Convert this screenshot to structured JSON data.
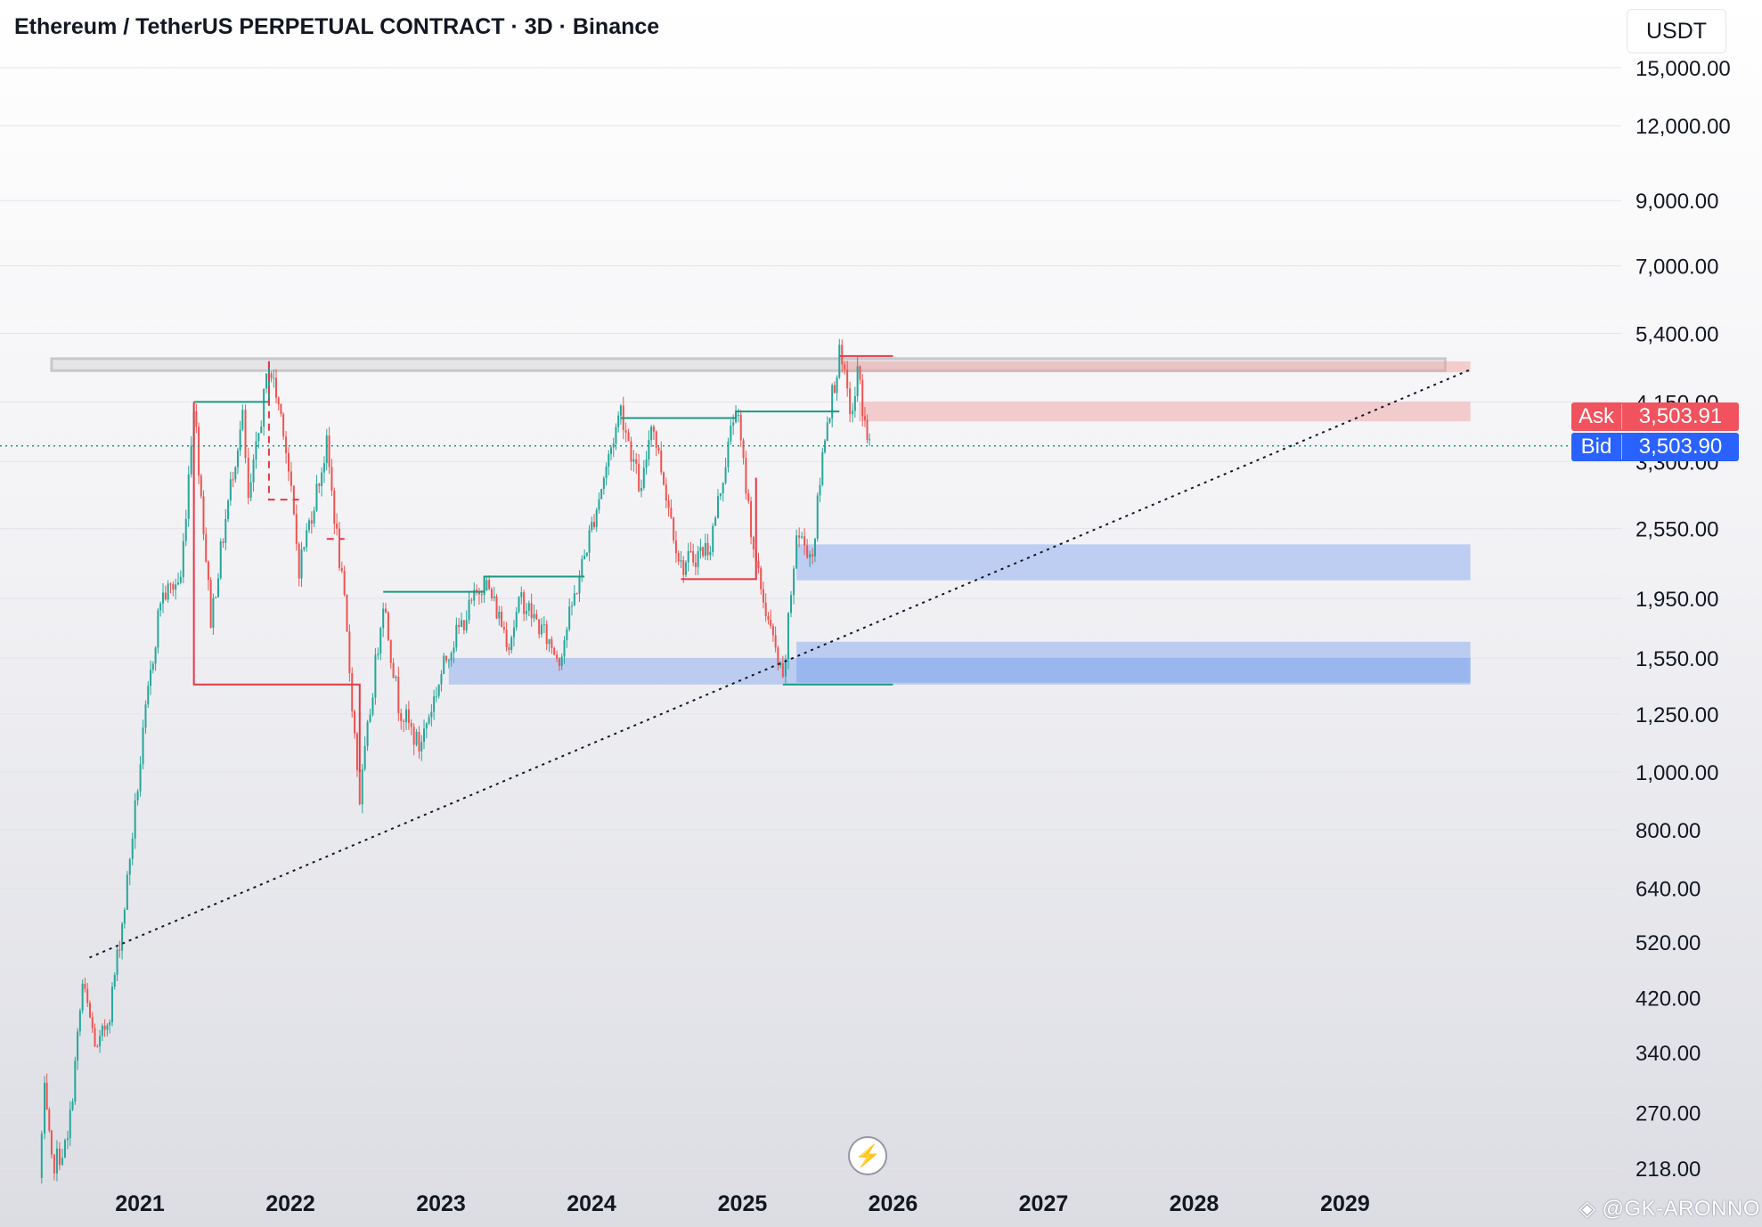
{
  "header": {
    "title": "Ethereum / TetherUS PERPETUAL CONTRACT · 3D · Binance",
    "currency": "USDT"
  },
  "price_tags": {
    "ask_label": "Ask",
    "ask_value": "3,503.91",
    "bid_label": "Bid",
    "bid_value": "3,503.90"
  },
  "watermark": "@GK-ARONNO",
  "icons": {
    "replay": "lightning-bolt-icon",
    "watermark_logo": "diamond-logo-icon"
  },
  "colors": {
    "up": "#26a69a",
    "down": "#ef5350",
    "ask": "#f0525e",
    "bid": "#2962ff",
    "zone_blue": "#5b8def",
    "zone_red": "#ef9a9a",
    "zone_gray": "#c8c8cc",
    "level_green": "#1a9a84",
    "level_red": "#e53945"
  },
  "chart_data": {
    "type": "candlestick",
    "title": "Ethereum / TetherUS PERPETUAL CONTRACT · 3D · Binance",
    "yscale": "log",
    "ylim": [
      205,
      16500
    ],
    "xlim": [
      "2020-05-01",
      "2031-01-01"
    ],
    "y_ticks": [
      {
        "value": 15000,
        "label": "15,000.00"
      },
      {
        "value": 12000,
        "label": "12,000.00"
      },
      {
        "value": 9000,
        "label": "9,000.00"
      },
      {
        "value": 7000,
        "label": "7,000.00"
      },
      {
        "value": 5400,
        "label": "5,400.00"
      },
      {
        "value": 4150,
        "label": "4,150.00"
      },
      {
        "value": 3300,
        "label": "3,300.00"
      },
      {
        "value": 2550,
        "label": "2,550.00"
      },
      {
        "value": 1950,
        "label": "1,950.00"
      },
      {
        "value": 1550,
        "label": "1,550.00"
      },
      {
        "value": 1250,
        "label": "1,250.00"
      },
      {
        "value": 1000,
        "label": "1,000.00"
      },
      {
        "value": 800,
        "label": "800.00"
      },
      {
        "value": 640,
        "label": "640.00"
      },
      {
        "value": 520,
        "label": "520.00"
      },
      {
        "value": 420,
        "label": "420.00"
      },
      {
        "value": 340,
        "label": "340.00"
      },
      {
        "value": 270,
        "label": "270.00"
      },
      {
        "value": 218,
        "label": "218.00"
      }
    ],
    "x_ticks": [
      {
        "date": "2021-01-01",
        "label": "2021"
      },
      {
        "date": "2022-01-01",
        "label": "2022"
      },
      {
        "date": "2023-01-01",
        "label": "2023"
      },
      {
        "date": "2024-01-01",
        "label": "2024"
      },
      {
        "date": "2025-01-01",
        "label": "2025"
      },
      {
        "date": "2026-01-01",
        "label": "2026"
      },
      {
        "date": "2027-01-01",
        "label": "2027"
      },
      {
        "date": "2028-01-01",
        "label": "2028"
      },
      {
        "date": "2029-01-01",
        "label": "2029"
      }
    ],
    "price_path": [
      {
        "date": "2020-05-01",
        "price": 210
      },
      {
        "date": "2020-05-15",
        "price": 290
      },
      {
        "date": "2020-06-01",
        "price": 220
      },
      {
        "date": "2020-07-10",
        "price": 240
      },
      {
        "date": "2020-08-15",
        "price": 440
      },
      {
        "date": "2020-09-20",
        "price": 340
      },
      {
        "date": "2020-10-20",
        "price": 400
      },
      {
        "date": "2020-11-25",
        "price": 600
      },
      {
        "date": "2021-01-15",
        "price": 1250
      },
      {
        "date": "2021-02-20",
        "price": 1950
      },
      {
        "date": "2021-04-10",
        "price": 2100
      },
      {
        "date": "2021-05-12",
        "price": 4150
      },
      {
        "date": "2021-06-22",
        "price": 1800
      },
      {
        "date": "2021-08-15",
        "price": 3200
      },
      {
        "date": "2021-09-07",
        "price": 3900
      },
      {
        "date": "2021-09-21",
        "price": 2800
      },
      {
        "date": "2021-11-10",
        "price": 4800
      },
      {
        "date": "2021-12-15",
        "price": 3800
      },
      {
        "date": "2022-01-22",
        "price": 2200
      },
      {
        "date": "2022-03-30",
        "price": 3500
      },
      {
        "date": "2022-05-12",
        "price": 1900
      },
      {
        "date": "2022-06-18",
        "price": 900
      },
      {
        "date": "2022-08-14",
        "price": 1950
      },
      {
        "date": "2022-09-20",
        "price": 1300
      },
      {
        "date": "2022-11-09",
        "price": 1100
      },
      {
        "date": "2023-01-20",
        "price": 1600
      },
      {
        "date": "2023-04-16",
        "price": 2100
      },
      {
        "date": "2023-06-15",
        "price": 1650
      },
      {
        "date": "2023-07-15",
        "price": 1950
      },
      {
        "date": "2023-10-15",
        "price": 1550
      },
      {
        "date": "2023-12-15",
        "price": 2300
      },
      {
        "date": "2024-03-12",
        "price": 4050
      },
      {
        "date": "2024-05-01",
        "price": 2900
      },
      {
        "date": "2024-05-25",
        "price": 3900
      },
      {
        "date": "2024-08-05",
        "price": 2200
      },
      {
        "date": "2024-10-15",
        "price": 2400
      },
      {
        "date": "2024-12-16",
        "price": 4100
      },
      {
        "date": "2025-02-03",
        "price": 2200
      },
      {
        "date": "2025-04-09",
        "price": 1400
      },
      {
        "date": "2025-05-12",
        "price": 2500
      },
      {
        "date": "2025-06-20",
        "price": 2300
      },
      {
        "date": "2025-07-20",
        "price": 3700
      },
      {
        "date": "2025-08-24",
        "price": 4950
      },
      {
        "date": "2025-09-25",
        "price": 3900
      },
      {
        "date": "2025-10-07",
        "price": 4700
      },
      {
        "date": "2025-10-25",
        "price": 3800
      },
      {
        "date": "2025-11-05",
        "price": 3503.9
      }
    ],
    "levels": [
      {
        "color": "green",
        "path": [
          [
            "2021-05-12",
            4150
          ],
          [
            "2021-11-10",
            4150
          ],
          [
            "2021-11-10",
            4850
          ]
        ]
      },
      {
        "color": "red",
        "path": [
          [
            "2021-05-12",
            4150
          ],
          [
            "2021-05-12",
            1400
          ],
          [
            "2022-06-18",
            1400
          ],
          [
            "2022-06-18",
            1000
          ]
        ]
      },
      {
        "color": "red",
        "path": [
          [
            "2021-11-10",
            4850
          ],
          [
            "2021-11-10",
            2850
          ],
          [
            "2022-01-22",
            2850
          ]
        ],
        "dashed": true
      },
      {
        "color": "red",
        "path": [
          [
            "2022-03-30",
            2450
          ],
          [
            "2022-05-12",
            2450
          ]
        ],
        "dashed": true
      },
      {
        "color": "green",
        "path": [
          [
            "2022-08-14",
            2000
          ],
          [
            "2023-04-16",
            2000
          ],
          [
            "2023-04-16",
            2120
          ],
          [
            "2023-12-15",
            2120
          ]
        ]
      },
      {
        "color": "green",
        "path": [
          [
            "2024-03-12",
            3900
          ],
          [
            "2024-12-16",
            3900
          ],
          [
            "2024-12-16",
            4000
          ],
          [
            "2025-08-24",
            4000
          ]
        ]
      },
      {
        "color": "red",
        "path": [
          [
            "2024-08-05",
            2100
          ],
          [
            "2025-02-03",
            2100
          ],
          [
            "2025-02-03",
            3100
          ]
        ]
      },
      {
        "color": "red",
        "path": [
          [
            "2025-08-24",
            4950
          ],
          [
            "2026-01-01",
            4950
          ]
        ]
      },
      {
        "color": "green",
        "path": [
          [
            "2025-04-09",
            1400
          ],
          [
            "2026-01-01",
            1400
          ]
        ]
      }
    ],
    "zones": [
      {
        "color": "gray",
        "from": "2020-06-01",
        "to": "2029-09-01",
        "y_low": 4680,
        "y_high": 4900
      },
      {
        "color": "red",
        "from": "2025-09-01",
        "to": "2029-11-01",
        "y_low": 4650,
        "y_high": 4850
      },
      {
        "color": "red",
        "from": "2025-10-10",
        "to": "2029-11-01",
        "y_low": 3850,
        "y_high": 4150
      },
      {
        "color": "blue",
        "from": "2025-05-12",
        "to": "2029-11-01",
        "y_low": 2090,
        "y_high": 2400
      },
      {
        "color": "blue",
        "from": "2023-01-20",
        "to": "2029-11-01",
        "y_low": 1400,
        "y_high": 1550
      },
      {
        "color": "blue",
        "from": "2025-05-12",
        "to": "2029-11-01",
        "y_low": 1410,
        "y_high": 1650
      }
    ],
    "trendline": {
      "from": [
        "2020-09-01",
        490
      ],
      "to": [
        "2029-11-01",
        4700
      ],
      "style": "dotted"
    },
    "current_price_line": {
      "value": 3503.9,
      "style": "dotted",
      "color": "green"
    },
    "grid": true
  }
}
